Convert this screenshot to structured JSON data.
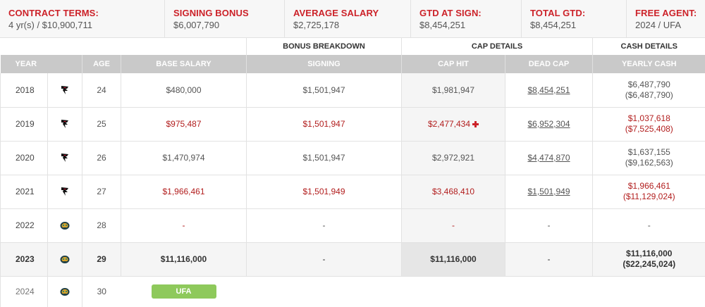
{
  "summary": [
    {
      "label": "CONTRACT TERMS:",
      "value": "4 yr(s) / $10,900,711"
    },
    {
      "label": "SIGNING BONUS",
      "value": "$6,007,790"
    },
    {
      "label": "AVERAGE SALARY",
      "value": "$2,725,178"
    },
    {
      "label": "GTD AT SIGN:",
      "value": "$8,454,251"
    },
    {
      "label": "TOTAL GTD:",
      "value": "$8,454,251"
    },
    {
      "label": "FREE AGENT:",
      "value": "2024 / UFA"
    }
  ],
  "groups": {
    "bonus": "BONUS BREAKDOWN",
    "cap": "CAP DETAILS",
    "cash": "CASH DETAILS"
  },
  "columns": {
    "year": "YEAR",
    "age": "AGE",
    "base": "BASE SALARY",
    "signing": "SIGNING",
    "cap_hit": "CAP HIT",
    "dead_cap": "DEAD CAP",
    "yearly_cash": "YEARLY CASH"
  },
  "rows": [
    {
      "year": "2018",
      "team_icon": "falcons-logo-icon",
      "age": "24",
      "base": "$480,000",
      "signing": "$1,501,947",
      "cap_hit": "$1,981,947",
      "dead_cap": "$8,454,251",
      "cash": "$6,487,790",
      "cash_cum": "($6,487,790)"
    },
    {
      "year": "2019",
      "team_icon": "falcons-logo-icon",
      "age": "25",
      "base": "$975,487",
      "signing": "$1,501,947",
      "cap_hit": "$2,477,434",
      "dead_cap": "$6,952,304",
      "cash": "$1,037,618",
      "cash_cum": "($7,525,408)"
    },
    {
      "year": "2020",
      "team_icon": "falcons-logo-icon",
      "age": "26",
      "base": "$1,470,974",
      "signing": "$1,501,947",
      "cap_hit": "$2,972,921",
      "dead_cap": "$4,474,870",
      "cash": "$1,637,155",
      "cash_cum": "($9,162,563)"
    },
    {
      "year": "2021",
      "team_icon": "falcons-logo-icon",
      "age": "27",
      "base": "$1,966,461",
      "signing": "$1,501,949",
      "cap_hit": "$3,468,410",
      "dead_cap": "$1,501,949",
      "cash": "$1,966,461",
      "cash_cum": "($11,129,024)"
    },
    {
      "year": "2022",
      "team_icon": "jaguars-logo-icon",
      "age": "28",
      "base": "-",
      "signing": "-",
      "cap_hit": "-",
      "dead_cap": "-",
      "cash": "-",
      "cash_cum": ""
    },
    {
      "year": "2023",
      "team_icon": "jaguars-logo-icon",
      "age": "29",
      "base": "$11,116,000",
      "signing": "-",
      "cap_hit": "$11,116,000",
      "dead_cap": "-",
      "cash": "$11,116,000",
      "cash_cum": "($22,245,024)"
    },
    {
      "year": "2024",
      "team_icon": "jaguars-logo-icon",
      "age": "30",
      "status": "UFA"
    }
  ],
  "colors": {
    "accent_red": "#cc2229",
    "value_red": "#b21e1e",
    "header_gray": "#c9c9c9",
    "ufa_green": "#8ec95b"
  }
}
